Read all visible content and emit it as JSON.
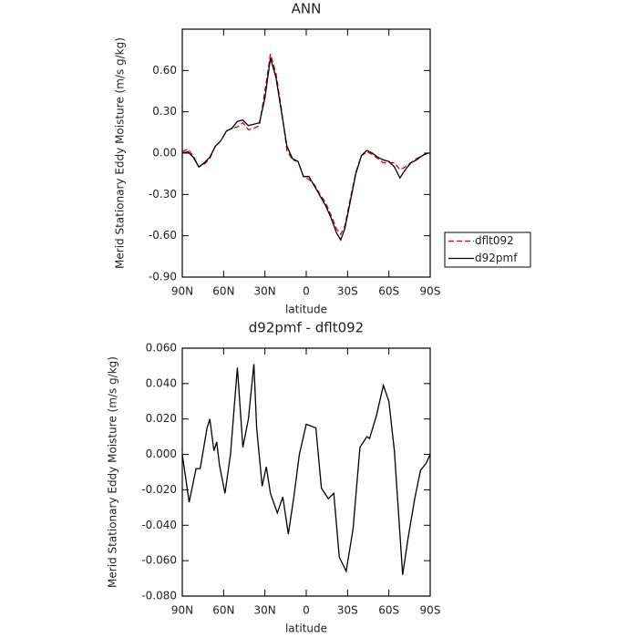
{
  "chart_data": [
    {
      "type": "line",
      "title": "ANN",
      "xlabel": "latitude",
      "ylabel": "Merid Stationary Eddy Moisture (m/s g/kg)",
      "x": [
        90,
        86,
        82,
        78,
        74,
        70,
        66,
        62,
        58,
        54,
        50,
        46,
        42,
        38,
        34,
        30,
        26,
        22,
        18,
        14,
        10,
        6,
        2,
        -2,
        -6,
        -10,
        -14,
        -18,
        -22,
        -25,
        -28,
        -32,
        -36,
        -40,
        -44,
        -48,
        -52,
        -56,
        -60,
        -64,
        -68,
        -72,
        -76,
        -80,
        -84,
        -88,
        -90
      ],
      "series": [
        {
          "name": "dflt092",
          "color": "#e00000",
          "style": "dashed",
          "values": [
            0.01,
            0.03,
            -0.02,
            -0.1,
            -0.08,
            -0.04,
            0.05,
            0.09,
            0.16,
            0.18,
            0.19,
            0.22,
            0.17,
            0.18,
            0.2,
            0.45,
            0.72,
            0.58,
            0.32,
            0.02,
            -0.05,
            -0.06,
            -0.17,
            -0.19,
            -0.23,
            -0.3,
            -0.36,
            -0.45,
            -0.55,
            -0.59,
            -0.53,
            -0.33,
            -0.14,
            -0.02,
            0.01,
            -0.01,
            -0.04,
            -0.07,
            -0.07,
            -0.07,
            -0.12,
            -0.1,
            -0.07,
            -0.04,
            -0.02,
            0.0,
            0.0
          ]
        },
        {
          "name": "d92pmf",
          "color": "#000000",
          "style": "solid",
          "values": [
            0.0,
            0.01,
            -0.03,
            -0.1,
            -0.07,
            -0.03,
            0.05,
            0.09,
            0.16,
            0.18,
            0.23,
            0.24,
            0.2,
            0.21,
            0.22,
            0.4,
            0.69,
            0.55,
            0.3,
            0.05,
            -0.04,
            -0.06,
            -0.17,
            -0.17,
            -0.24,
            -0.31,
            -0.38,
            -0.47,
            -0.58,
            -0.63,
            -0.55,
            -0.35,
            -0.15,
            -0.02,
            0.02,
            0.0,
            -0.03,
            -0.05,
            -0.06,
            -0.1,
            -0.18,
            -0.12,
            -0.07,
            -0.05,
            -0.02,
            0.0,
            0.0
          ]
        }
      ],
      "xlim": [
        90,
        -90
      ],
      "xticks": [
        {
          "value": 90,
          "label": "90N"
        },
        {
          "value": 60,
          "label": "60N"
        },
        {
          "value": 30,
          "label": "30N"
        },
        0,
        {
          "value": -30,
          "label": "30S"
        },
        {
          "value": -60,
          "label": "60S"
        },
        {
          "value": -90,
          "label": "90S"
        }
      ],
      "ylim": [
        -0.9,
        0.9
      ],
      "yticks": [
        {
          "value": -0.9,
          "label": "-0.90"
        },
        {
          "value": -0.6,
          "label": "-0.60"
        },
        {
          "value": -0.3,
          "label": "-0.30"
        },
        {
          "value": 0,
          "label": "0.00"
        },
        {
          "value": 0.3,
          "label": "0.30"
        },
        {
          "value": 0.6,
          "label": "0.60"
        }
      ],
      "legend": "right"
    },
    {
      "type": "line",
      "title": "d92pmf - dflt092",
      "xlabel": "latitude",
      "ylabel": "Merid Stationary Eddy Moisture (m/s g/kg)",
      "x": [
        90,
        85,
        80,
        77,
        72,
        70,
        67,
        65,
        63,
        59,
        55,
        50,
        46,
        42,
        38,
        36,
        32,
        29,
        26,
        21,
        17,
        13,
        9,
        5,
        0,
        -7,
        -11,
        -16,
        -20,
        -24,
        -29,
        -34,
        -39,
        -44,
        -46,
        -51,
        -56,
        -60,
        -64,
        -70,
        -74,
        -79,
        -83,
        -87,
        -90
      ],
      "values": [
        0.0,
        -0.027,
        -0.008,
        -0.008,
        0.015,
        0.02,
        0.002,
        0.007,
        -0.006,
        -0.022,
        0.0,
        0.049,
        0.004,
        0.02,
        0.051,
        0.015,
        -0.018,
        -0.007,
        -0.022,
        -0.033,
        -0.024,
        -0.045,
        -0.024,
        0.0,
        0.017,
        0.015,
        -0.019,
        -0.025,
        -0.022,
        -0.058,
        -0.066,
        -0.042,
        0.004,
        0.01,
        0.009,
        0.022,
        0.039,
        0.03,
        0.002,
        -0.068,
        -0.047,
        -0.024,
        -0.009,
        -0.005,
        0.0
      ],
      "color": "#000000",
      "xlim": [
        90,
        -90
      ],
      "xticks": [
        {
          "value": 90,
          "label": "90N"
        },
        {
          "value": 60,
          "label": "60N"
        },
        {
          "value": 30,
          "label": "30N"
        },
        0,
        {
          "value": -30,
          "label": "30S"
        },
        {
          "value": -60,
          "label": "60S"
        },
        {
          "value": -90,
          "label": "90S"
        }
      ],
      "ylim": [
        -0.08,
        0.06
      ],
      "yticks": [
        {
          "value": -0.08,
          "label": "-0.080"
        },
        {
          "value": -0.06,
          "label": "-0.060"
        },
        {
          "value": -0.04,
          "label": "-0.040"
        },
        {
          "value": -0.02,
          "label": "-0.020"
        },
        {
          "value": 0,
          "label": "0.000"
        },
        {
          "value": 0.02,
          "label": "0.020"
        },
        {
          "value": 0.04,
          "label": "0.040"
        },
        {
          "value": 0.06,
          "label": "0.060"
        }
      ]
    }
  ]
}
